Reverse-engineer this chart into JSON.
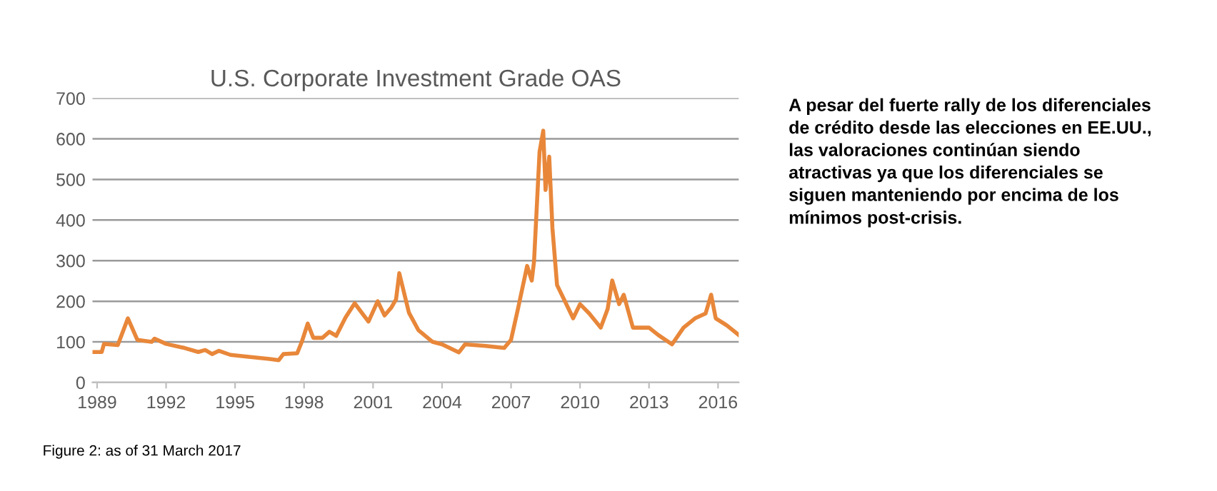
{
  "chart_data": {
    "type": "line",
    "title": "U.S. Corporate Investment Grade OAS",
    "x": [
      1988.8,
      1989.2,
      1989.3,
      1989.9,
      1990.34,
      1990.75,
      1991.37,
      1991.5,
      1992.0,
      1992.8,
      1993.4,
      1993.7,
      1994.0,
      1994.3,
      1994.8,
      1995.6,
      1996.5,
      1996.9,
      1997.1,
      1997.7,
      1997.9,
      1998.16,
      1998.4,
      1998.8,
      1999.1,
      1999.4,
      1999.8,
      2000.2,
      2000.4,
      2000.8,
      2001.2,
      2001.5,
      2001.8,
      2002.0,
      2002.14,
      2002.56,
      2002.97,
      2003.59,
      2004.0,
      2004.73,
      2005.0,
      2005.9,
      2006.7,
      2007.0,
      2007.3,
      2007.7,
      2007.9,
      2008.0,
      2008.24,
      2008.4,
      2008.5,
      2008.66,
      2008.8,
      2009.0,
      2009.3,
      2009.7,
      2010.0,
      2010.4,
      2010.9,
      2011.2,
      2011.4,
      2011.7,
      2011.9,
      2012.3,
      2013.0,
      2013.4,
      2014.0,
      2014.5,
      2015.0,
      2015.46,
      2015.7,
      2015.9,
      2016.4,
      2016.9
    ],
    "series": [
      {
        "color": "#e8873a",
        "values": [
          75,
          75,
          95,
          92,
          158,
          105,
          100,
          108,
          95,
          85,
          75,
          80,
          70,
          78,
          68,
          63,
          58,
          55,
          70,
          72,
          100,
          145,
          110,
          110,
          125,
          115,
          160,
          195,
          180,
          150,
          200,
          165,
          185,
          205,
          269,
          172,
          129,
          100,
          94,
          74,
          94,
          90,
          85,
          105,
          181,
          287,
          251,
          298,
          568,
          620,
          474,
          556,
          380,
          240,
          205,
          158,
          193,
          170,
          135,
          181,
          251,
          193,
          216,
          135,
          135,
          117,
          94,
          135,
          158,
          170,
          216,
          158,
          140,
          117
        ]
      }
    ],
    "xlim": [
      1988.8,
      2016.9
    ],
    "xticks": [
      1989,
      1992,
      1995,
      1998,
      2001,
      2004,
      2007,
      2010,
      2013,
      2016
    ],
    "ylim": [
      0,
      700
    ],
    "yticks": [
      0,
      100,
      200,
      300,
      400,
      500,
      600,
      700
    ],
    "grid": "y",
    "legend": false,
    "marker": "none",
    "line_style": "solid",
    "annotations": [
      "A pesar del fuerte rally de los diferenciales\nde crédito desde las elecciones en EE.UU.,\nlas valoraciones continúan siendo\natractivas ya que los diferenciales se\nsiguen manteniendo por encima de los\nmínimos post-crisis.",
      "Figure 2: as of 31 March 2017"
    ]
  }
}
